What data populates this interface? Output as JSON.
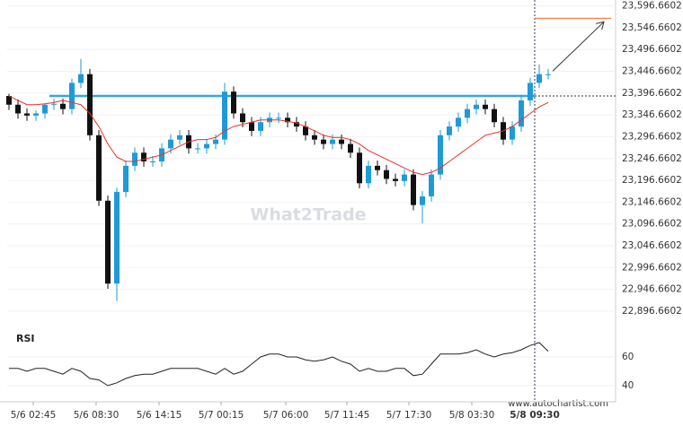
{
  "chart_data": {
    "type": "candlestick",
    "x": [
      0,
      1,
      2,
      3,
      4,
      5,
      6,
      7,
      8,
      9,
      10,
      11,
      12,
      13,
      14,
      15,
      16,
      17,
      18,
      19,
      20,
      21,
      22,
      23,
      24,
      25,
      26,
      27,
      28,
      29,
      30,
      31,
      32,
      33,
      34,
      35,
      36,
      37,
      38,
      39,
      40,
      41,
      42,
      43,
      44,
      45,
      46,
      47,
      48,
      49,
      50,
      51,
      52,
      53,
      54,
      55,
      56,
      57,
      58,
      59,
      60
    ],
    "open": [
      23390,
      23370,
      23350,
      23345,
      23350,
      23370,
      23372,
      23360,
      23420,
      23440,
      23300,
      23150,
      22960,
      23170,
      23230,
      23260,
      23240,
      23240,
      23270,
      23290,
      23300,
      23270,
      23270,
      23280,
      23290,
      23400,
      23350,
      23330,
      23310,
      23330,
      23340,
      23340,
      23330,
      23320,
      23300,
      23290,
      23280,
      23290,
      23280,
      23260,
      23190,
      23230,
      23220,
      23200,
      23195,
      23210,
      23140,
      23160,
      23210,
      23300,
      23320,
      23340,
      23360,
      23370,
      23360,
      23330,
      23290,
      23320,
      23380,
      23420,
      23440
    ],
    "high": [
      23395,
      23382,
      23362,
      23357,
      23372,
      23384,
      23384,
      23430,
      23475,
      23452,
      23312,
      23162,
      23180,
      23242,
      23272,
      23272,
      23252,
      23282,
      23302,
      23312,
      23312,
      23282,
      23292,
      23302,
      23420,
      23412,
      23362,
      23342,
      23342,
      23352,
      23352,
      23352,
      23342,
      23332,
      23312,
      23302,
      23302,
      23302,
      23292,
      23272,
      23242,
      23242,
      23232,
      23212,
      23222,
      23222,
      23172,
      23222,
      23312,
      23332,
      23352,
      23372,
      23382,
      23382,
      23372,
      23342,
      23332,
      23392,
      23432,
      23462,
      23452
    ],
    "low": [
      23358,
      23338,
      23333,
      23333,
      23338,
      23358,
      23348,
      23348,
      23408,
      23288,
      23138,
      22948,
      22920,
      23158,
      23218,
      23228,
      23228,
      23228,
      23258,
      23278,
      23258,
      23258,
      23258,
      23268,
      23278,
      23338,
      23318,
      23298,
      23298,
      23318,
      23328,
      23318,
      23308,
      23288,
      23278,
      23268,
      23268,
      23268,
      23248,
      23178,
      23178,
      23208,
      23188,
      23183,
      23183,
      23128,
      23098,
      23148,
      23198,
      23288,
      23308,
      23328,
      23348,
      23348,
      23318,
      23278,
      23278,
      23308,
      23368,
      23408,
      23428
    ],
    "close": [
      23370,
      23350,
      23345,
      23350,
      23370,
      23372,
      23360,
      23420,
      23440,
      23300,
      23150,
      22960,
      23170,
      23230,
      23260,
      23240,
      23240,
      23270,
      23290,
      23300,
      23270,
      23270,
      23280,
      23290,
      23400,
      23350,
      23330,
      23310,
      23330,
      23340,
      23340,
      23330,
      23320,
      23300,
      23290,
      23280,
      23290,
      23280,
      23260,
      23190,
      23230,
      23220,
      23200,
      23195,
      23210,
      23140,
      23160,
      23210,
      23300,
      23320,
      23340,
      23360,
      23370,
      23360,
      23330,
      23290,
      23320,
      23380,
      23420,
      23440,
      23440
    ],
    "up_color": "#1f9ad6",
    "down_color": "#111111",
    "ma": {
      "color": "#e8302a",
      "values": [
        23390,
        23380,
        23370,
        23370,
        23372,
        23375,
        23380,
        23375,
        23370,
        23350,
        23320,
        23280,
        23250,
        23240,
        23240,
        23245,
        23250,
        23255,
        23265,
        23275,
        23285,
        23290,
        23290,
        23295,
        23310,
        23320,
        23325,
        23330,
        23335,
        23335,
        23335,
        23332,
        23328,
        23320,
        23310,
        23300,
        23295,
        23295,
        23290,
        23280,
        23265,
        23255,
        23245,
        23235,
        23225,
        23215,
        23210,
        23215,
        23225,
        23240,
        23255,
        23270,
        23285,
        23300,
        23305,
        23310,
        23320,
        23335,
        23350,
        23365,
        23375
      ]
    },
    "resistance": {
      "value": 23390,
      "start": 4.5,
      "color": "#35a7d9"
    },
    "target": {
      "value": 23568,
      "start": 58.5,
      "end": 67,
      "color": "#f07b3f"
    },
    "forecast": {
      "x": [
        60.5,
        66.2
      ],
      "y": [
        23447,
        23560
      ]
    },
    "now_x": 58.5,
    "xlim": [
      -0.2,
      67.5
    ],
    "ylim": [
      22870,
      23610
    ],
    "yticks": [
      {
        "value": 23596.6602,
        "label": "23,596.6602"
      },
      {
        "value": 23546.6602,
        "label": "23,546.6602"
      },
      {
        "value": 23496.6602,
        "label": "23,496.6602"
      },
      {
        "value": 23446.6602,
        "label": "23,446.6602"
      },
      {
        "value": 23396.6602,
        "label": "23,396.6602"
      },
      {
        "value": 23346.6602,
        "label": "23,346.6602"
      },
      {
        "value": 23296.6602,
        "label": "23,296.6602"
      },
      {
        "value": 23246.6602,
        "label": "23,246.6602"
      },
      {
        "value": 23196.6602,
        "label": "23,196.6602"
      },
      {
        "value": 23146.6602,
        "label": "23,146.6602"
      },
      {
        "value": 23096.6602,
        "label": "23,096.6602"
      },
      {
        "value": 23046.6602,
        "label": "23,046.6602"
      },
      {
        "value": 22996.6602,
        "label": "22,996.6602"
      },
      {
        "value": 22946.6602,
        "label": "22,946.6602"
      },
      {
        "value": 22896.6602,
        "label": "22,896.6602"
      }
    ],
    "xticks": [
      {
        "value": 2.7,
        "label": "5/6 02:45"
      },
      {
        "value": 9.7,
        "label": "5/6 08:30"
      },
      {
        "value": 16.7,
        "label": "5/6 14:15"
      },
      {
        "value": 23.6,
        "label": "5/7 00:15"
      },
      {
        "value": 30.8,
        "label": "5/7 06:00"
      },
      {
        "value": 37.6,
        "label": "5/7 11:45"
      },
      {
        "value": 44.5,
        "label": "5/7 17:30"
      },
      {
        "value": 51.5,
        "label": "5/8 03:30"
      },
      {
        "value": 58.5,
        "label": "5/8 09:30"
      }
    ],
    "rsi": {
      "label": "RSI",
      "color": "#222222",
      "ylim": [
        30,
        70
      ],
      "yticks": [
        60,
        40
      ],
      "values": [
        52,
        52,
        50,
        52,
        52,
        50,
        48,
        52,
        50,
        45,
        44,
        40,
        42,
        45,
        47,
        48,
        48,
        50,
        52,
        52,
        52,
        52,
        50,
        48,
        52,
        48,
        50,
        55,
        60,
        62,
        62,
        60,
        60,
        58,
        57,
        58,
        60,
        57,
        55,
        50,
        52,
        50,
        50,
        52,
        52,
        47,
        48,
        55,
        62,
        62,
        62,
        63,
        65,
        62,
        60,
        62,
        63,
        65,
        68,
        70,
        64
      ]
    },
    "watermark": "What2Trade",
    "source": "www.autochartist.com"
  }
}
